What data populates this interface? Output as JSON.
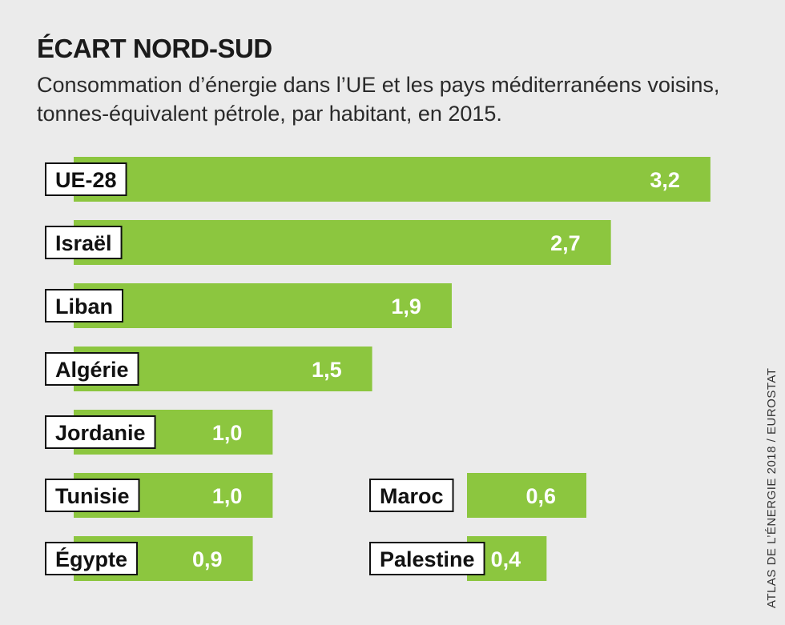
{
  "title": "ÉCART NORD-SUD",
  "subtitle": "Consommation d’énergie dans l’UE et les pays méditerranéens voisins, tonnes-équivalent pétrole, par habitant, en 2015.",
  "source": "ATLAS DE L’ÉNERGIE 2018 / EUROSTAT",
  "colors": {
    "bar": "#8cc63f",
    "background": "#ebebeb"
  },
  "chart_data": {
    "type": "bar",
    "orientation": "horizontal",
    "title": "ÉCART NORD-SUD",
    "subtitle": "Consommation d’énergie dans l’UE et les pays méditerranéens voisins, tonnes-équivalent pétrole, par habitant, en 2015.",
    "unit": "tonnes-équivalent pétrole par habitant",
    "grid": false,
    "legend": "none",
    "xlim": [
      0,
      3.2
    ],
    "bars": [
      {
        "category": "UE-28",
        "value": 3.2,
        "label": "3,2",
        "column": 1,
        "row": 1
      },
      {
        "category": "Israël",
        "value": 2.7,
        "label": "2,7",
        "column": 1,
        "row": 2
      },
      {
        "category": "Liban",
        "value": 1.9,
        "label": "1,9",
        "column": 1,
        "row": 3
      },
      {
        "category": "Algérie",
        "value": 1.5,
        "label": "1,5",
        "column": 1,
        "row": 4
      },
      {
        "category": "Jordanie",
        "value": 1.0,
        "label": "1,0",
        "column": 1,
        "row": 5
      },
      {
        "category": "Tunisie",
        "value": 1.0,
        "label": "1,0",
        "column": 1,
        "row": 6
      },
      {
        "category": "Égypte",
        "value": 0.9,
        "label": "0,9",
        "column": 1,
        "row": 7
      },
      {
        "category": "Maroc",
        "value": 0.6,
        "label": "0,6",
        "column": 2,
        "row": 6
      },
      {
        "category": "Palestine",
        "value": 0.4,
        "label": "0,4",
        "column": 2,
        "row": 7
      }
    ]
  }
}
